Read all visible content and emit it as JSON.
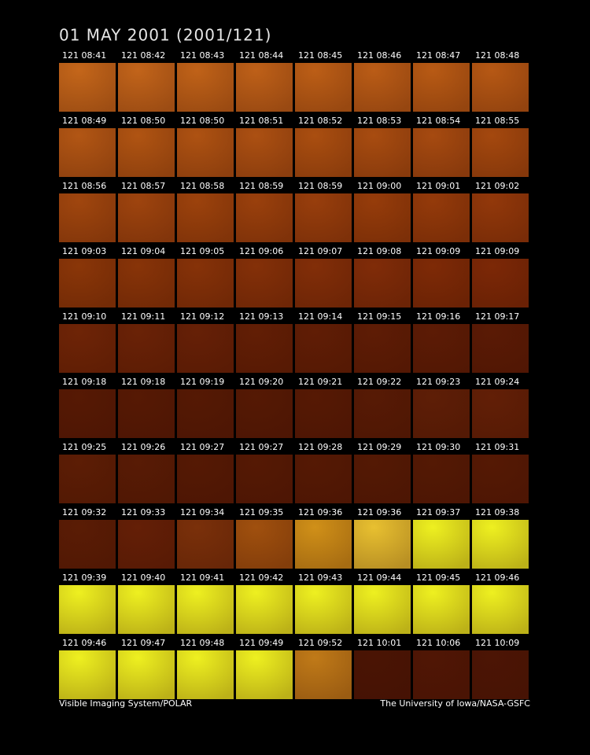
{
  "header": {
    "title": "01 MAY 2001  (2001/121)"
  },
  "frames": {
    "labels": [
      [
        "121 08:41",
        "121 08:42",
        "121 08:43",
        "121 08:44",
        "121 08:45",
        "121 08:46",
        "121 08:47",
        "121 08:48"
      ],
      [
        "121 08:49",
        "121 08:50",
        "121 08:50",
        "121 08:51",
        "121 08:52",
        "121 08:53",
        "121 08:54",
        "121 08:55"
      ],
      [
        "121 08:56",
        "121 08:57",
        "121 08:58",
        "121 08:59",
        "121 08:59",
        "121 09:00",
        "121 09:01",
        "121 09:02"
      ],
      [
        "121 09:03",
        "121 09:04",
        "121 09:05",
        "121 09:06",
        "121 09:07",
        "121 09:08",
        "121 09:09",
        "121 09:09"
      ],
      [
        "121 09:10",
        "121 09:11",
        "121 09:12",
        "121 09:13",
        "121 09:14",
        "121 09:15",
        "121 09:16",
        "121 09:17"
      ],
      [
        "121 09:18",
        "121 09:18",
        "121 09:19",
        "121 09:20",
        "121 09:21",
        "121 09:22",
        "121 09:23",
        "121 09:24"
      ],
      [
        "121 09:25",
        "121 09:26",
        "121 09:27",
        "121 09:27",
        "121 09:28",
        "121 09:29",
        "121 09:30",
        "121 09:31"
      ],
      [
        "121 09:32",
        "121 09:33",
        "121 09:34",
        "121 09:35",
        "121 09:36",
        "121 09:36",
        "121 09:37",
        "121 09:38"
      ],
      [
        "121 09:39",
        "121 09:40",
        "121 09:41",
        "121 09:42",
        "121 09:43",
        "121 09:44",
        "121 09:45",
        "121 09:46"
      ],
      [
        "121 09:46",
        "121 09:47",
        "121 09:48",
        "121 09:49",
        "121 09:52",
        "121 10:01",
        "121 10:06",
        "121 10:09"
      ]
    ],
    "colors": [
      [
        "#c4661a",
        "#c2641a",
        "#c06218",
        "#be6018",
        "#bc5e16",
        "#ba5c16",
        "#b85a14",
        "#b65814"
      ],
      [
        "#b25614",
        "#b05412",
        "#ae5212",
        "#ac5012",
        "#aa4e10",
        "#a84c10",
        "#a64a10",
        "#a4480e"
      ],
      [
        "#a0460e",
        "#9e440e",
        "#9c420c",
        "#9a400c",
        "#983e0c",
        "#963c0a",
        "#943a0a",
        "#92380a"
      ],
      [
        "#8a3608",
        "#883408",
        "#863208",
        "#843008",
        "#822e08",
        "#802c08",
        "#7e2a06",
        "#7c2806"
      ],
      [
        "#6e2406",
        "#6a2206",
        "#662006",
        "#621e05",
        "#601d05",
        "#5e1c05",
        "#5c1b05",
        "#5a1a05"
      ],
      [
        "#561904",
        "#561904",
        "#551904",
        "#551904",
        "#561904",
        "#571a05",
        "#5e1e06",
        "#621f06"
      ],
      [
        "#5c1d05",
        "#581b05",
        "#551904",
        "#551904",
        "#551904",
        "#541904",
        "#541904",
        "#551904"
      ],
      [
        "#5a1c05",
        "#641f06",
        "#7a300a",
        "#a0500e",
        "#d09018",
        "#e8c030",
        "#eef020",
        "#eef020"
      ],
      [
        "#eef020",
        "#eef020",
        "#eef020",
        "#eef020",
        "#eef020",
        "#eef020",
        "#eef020",
        "#eef020"
      ],
      [
        "#eef020",
        "#eef020",
        "#eef020",
        "#eef020",
        "#c07a18",
        "#4a1404",
        "#501605",
        "#4c1505"
      ]
    ]
  },
  "footer": {
    "left": "Visible Imaging System/POLAR",
    "right": "The University of Iowa/NASA-GSFC"
  }
}
